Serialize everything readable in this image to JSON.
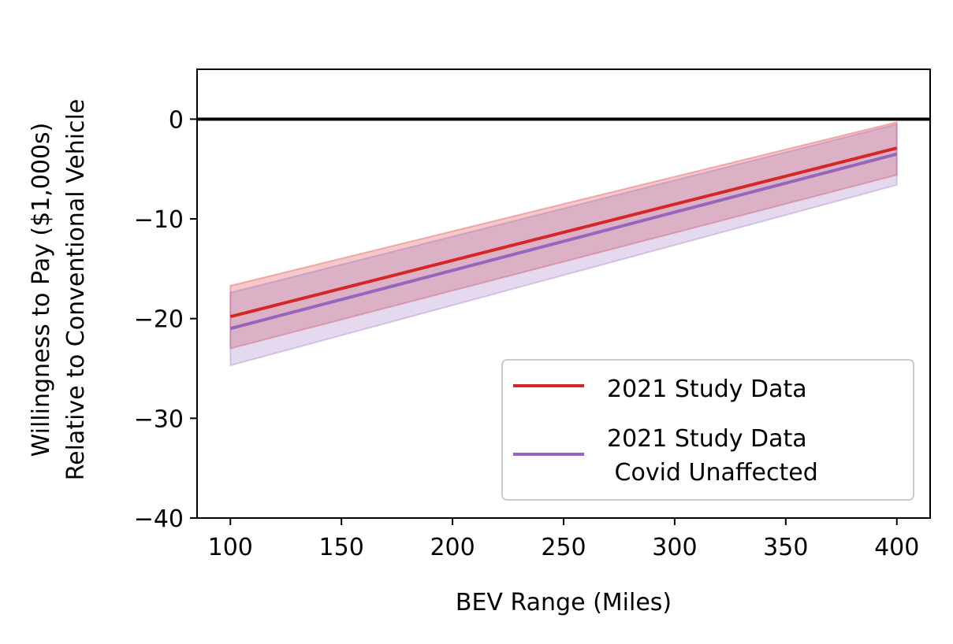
{
  "chart_data": {
    "type": "line",
    "xlabel": "BEV Range (Miles)",
    "ylabel_lines": [
      "Willingness to Pay ($1,000s)",
      "Relative to Conventional Vehicle"
    ],
    "xlim": [
      85,
      415
    ],
    "ylim": [
      -40,
      5
    ],
    "xticks": [
      100,
      150,
      200,
      250,
      300,
      350,
      400
    ],
    "xtick_labels": [
      "100",
      "150",
      "200",
      "250",
      "300",
      "350",
      "400"
    ],
    "yticks": [
      0,
      -10,
      -20,
      -30,
      -40
    ],
    "ytick_labels": [
      "0",
      "−10",
      "−20",
      "−30",
      "−40"
    ],
    "grid": false,
    "reference_line": {
      "y": 0,
      "color": "#000000"
    },
    "legend_placement": "lower-right",
    "series": [
      {
        "name": "2021 Study Data",
        "label_lines": [
          "2021 Study Data"
        ],
        "color": "#d62728",
        "x": [
          100,
          400
        ],
        "y": [
          -19.8,
          -2.9
        ],
        "ci_lower": [
          -23.0,
          -5.6
        ],
        "ci_upper": [
          -16.7,
          -0.3
        ]
      },
      {
        "name": "2021 Study Data\n Covid Unaffected",
        "label_lines": [
          "2021 Study Data",
          " Covid Unaffected"
        ],
        "color": "#9467bd",
        "x": [
          100,
          400
        ],
        "y": [
          -21.0,
          -3.5
        ],
        "ci_lower": [
          -24.7,
          -6.6
        ],
        "ci_upper": [
          -17.4,
          -0.5
        ]
      }
    ]
  }
}
